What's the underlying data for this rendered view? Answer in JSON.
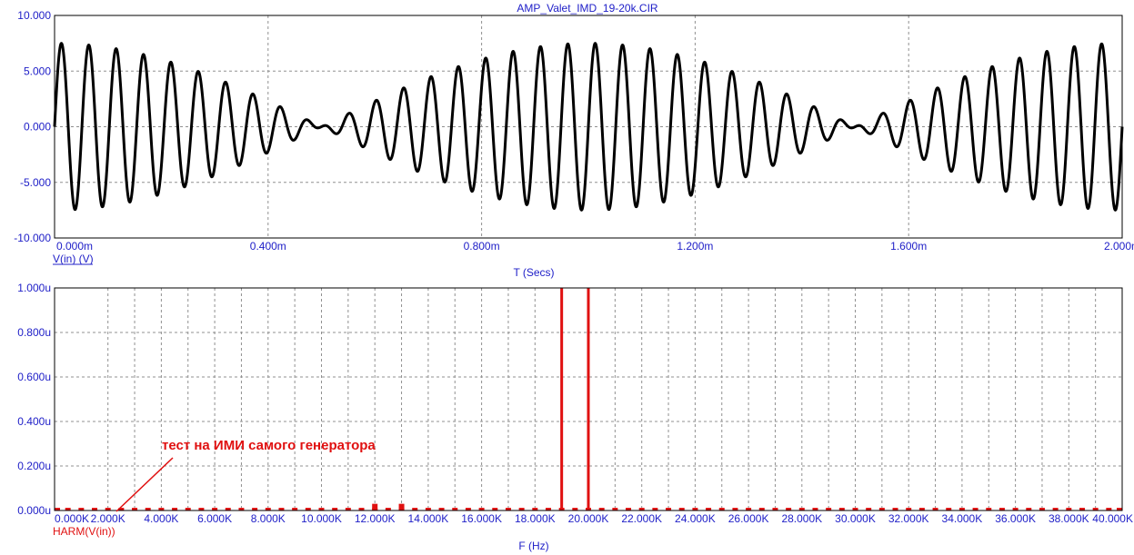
{
  "window": {
    "title": "AMP_Valet_IMD_19-20k.CIR"
  },
  "colors": {
    "frame": "#000000",
    "grid": "#909090",
    "labels": "#2020c8",
    "waveform": "#000000",
    "spectrum": "#e01010"
  },
  "chart_data": [
    {
      "type": "line",
      "title": "AMP_Valet_IMD_19-20k.CIR",
      "xlabel": "T (Secs)",
      "ylabel": "V(in) (V)",
      "series": [
        {
          "name": "V(in) (V)",
          "formula": "3.75*sin(2*pi*19000*t)+3.75*sin(2*pi*20000*t)",
          "color": "#000000"
        }
      ],
      "xlim": [
        0,
        0.002
      ],
      "ylim": [
        -10,
        10
      ],
      "x_ticks": [
        "0.000m",
        "0.400m",
        "0.800m",
        "1.200m",
        "1.600m",
        "2.000m"
      ],
      "y_ticks": [
        "10.000",
        "5.000",
        "0.000",
        "-5.000",
        "-10.000"
      ],
      "grid": true
    },
    {
      "type": "bar",
      "xlabel": "F (Hz)",
      "ylabel": "HARM(V(in))",
      "series": [
        {
          "name": "HARM(V(in))",
          "color": "#e01010"
        }
      ],
      "xlim": [
        0,
        40000
      ],
      "ylim": [
        0,
        1e-06
      ],
      "x_ticks": [
        "0.000K",
        "2.000K",
        "4.000K",
        "6.000K",
        "8.000K",
        "10.000K",
        "12.000K",
        "14.000K",
        "16.000K",
        "18.000K",
        "20.000K",
        "22.000K",
        "24.000K",
        "26.000K",
        "28.000K",
        "30.000K",
        "32.000K",
        "34.000K",
        "36.000K",
        "38.000K",
        "40.000K"
      ],
      "y_ticks": [
        "1.000u",
        "0.800u",
        "0.600u",
        "0.400u",
        "0.200u",
        "0.000u"
      ],
      "peaks": [
        {
          "f": 19000,
          "v": 1e-06
        },
        {
          "f": 20000,
          "v": 1e-06
        }
      ],
      "small_peaks": [
        {
          "f": 12000,
          "v": 3e-08
        },
        {
          "f": 13000,
          "v": 3e-08
        }
      ],
      "noise_floor": 1.2e-08,
      "noise_step": 500,
      "grid": true,
      "annotation": "тест на ИМИ самого генератора"
    }
  ]
}
